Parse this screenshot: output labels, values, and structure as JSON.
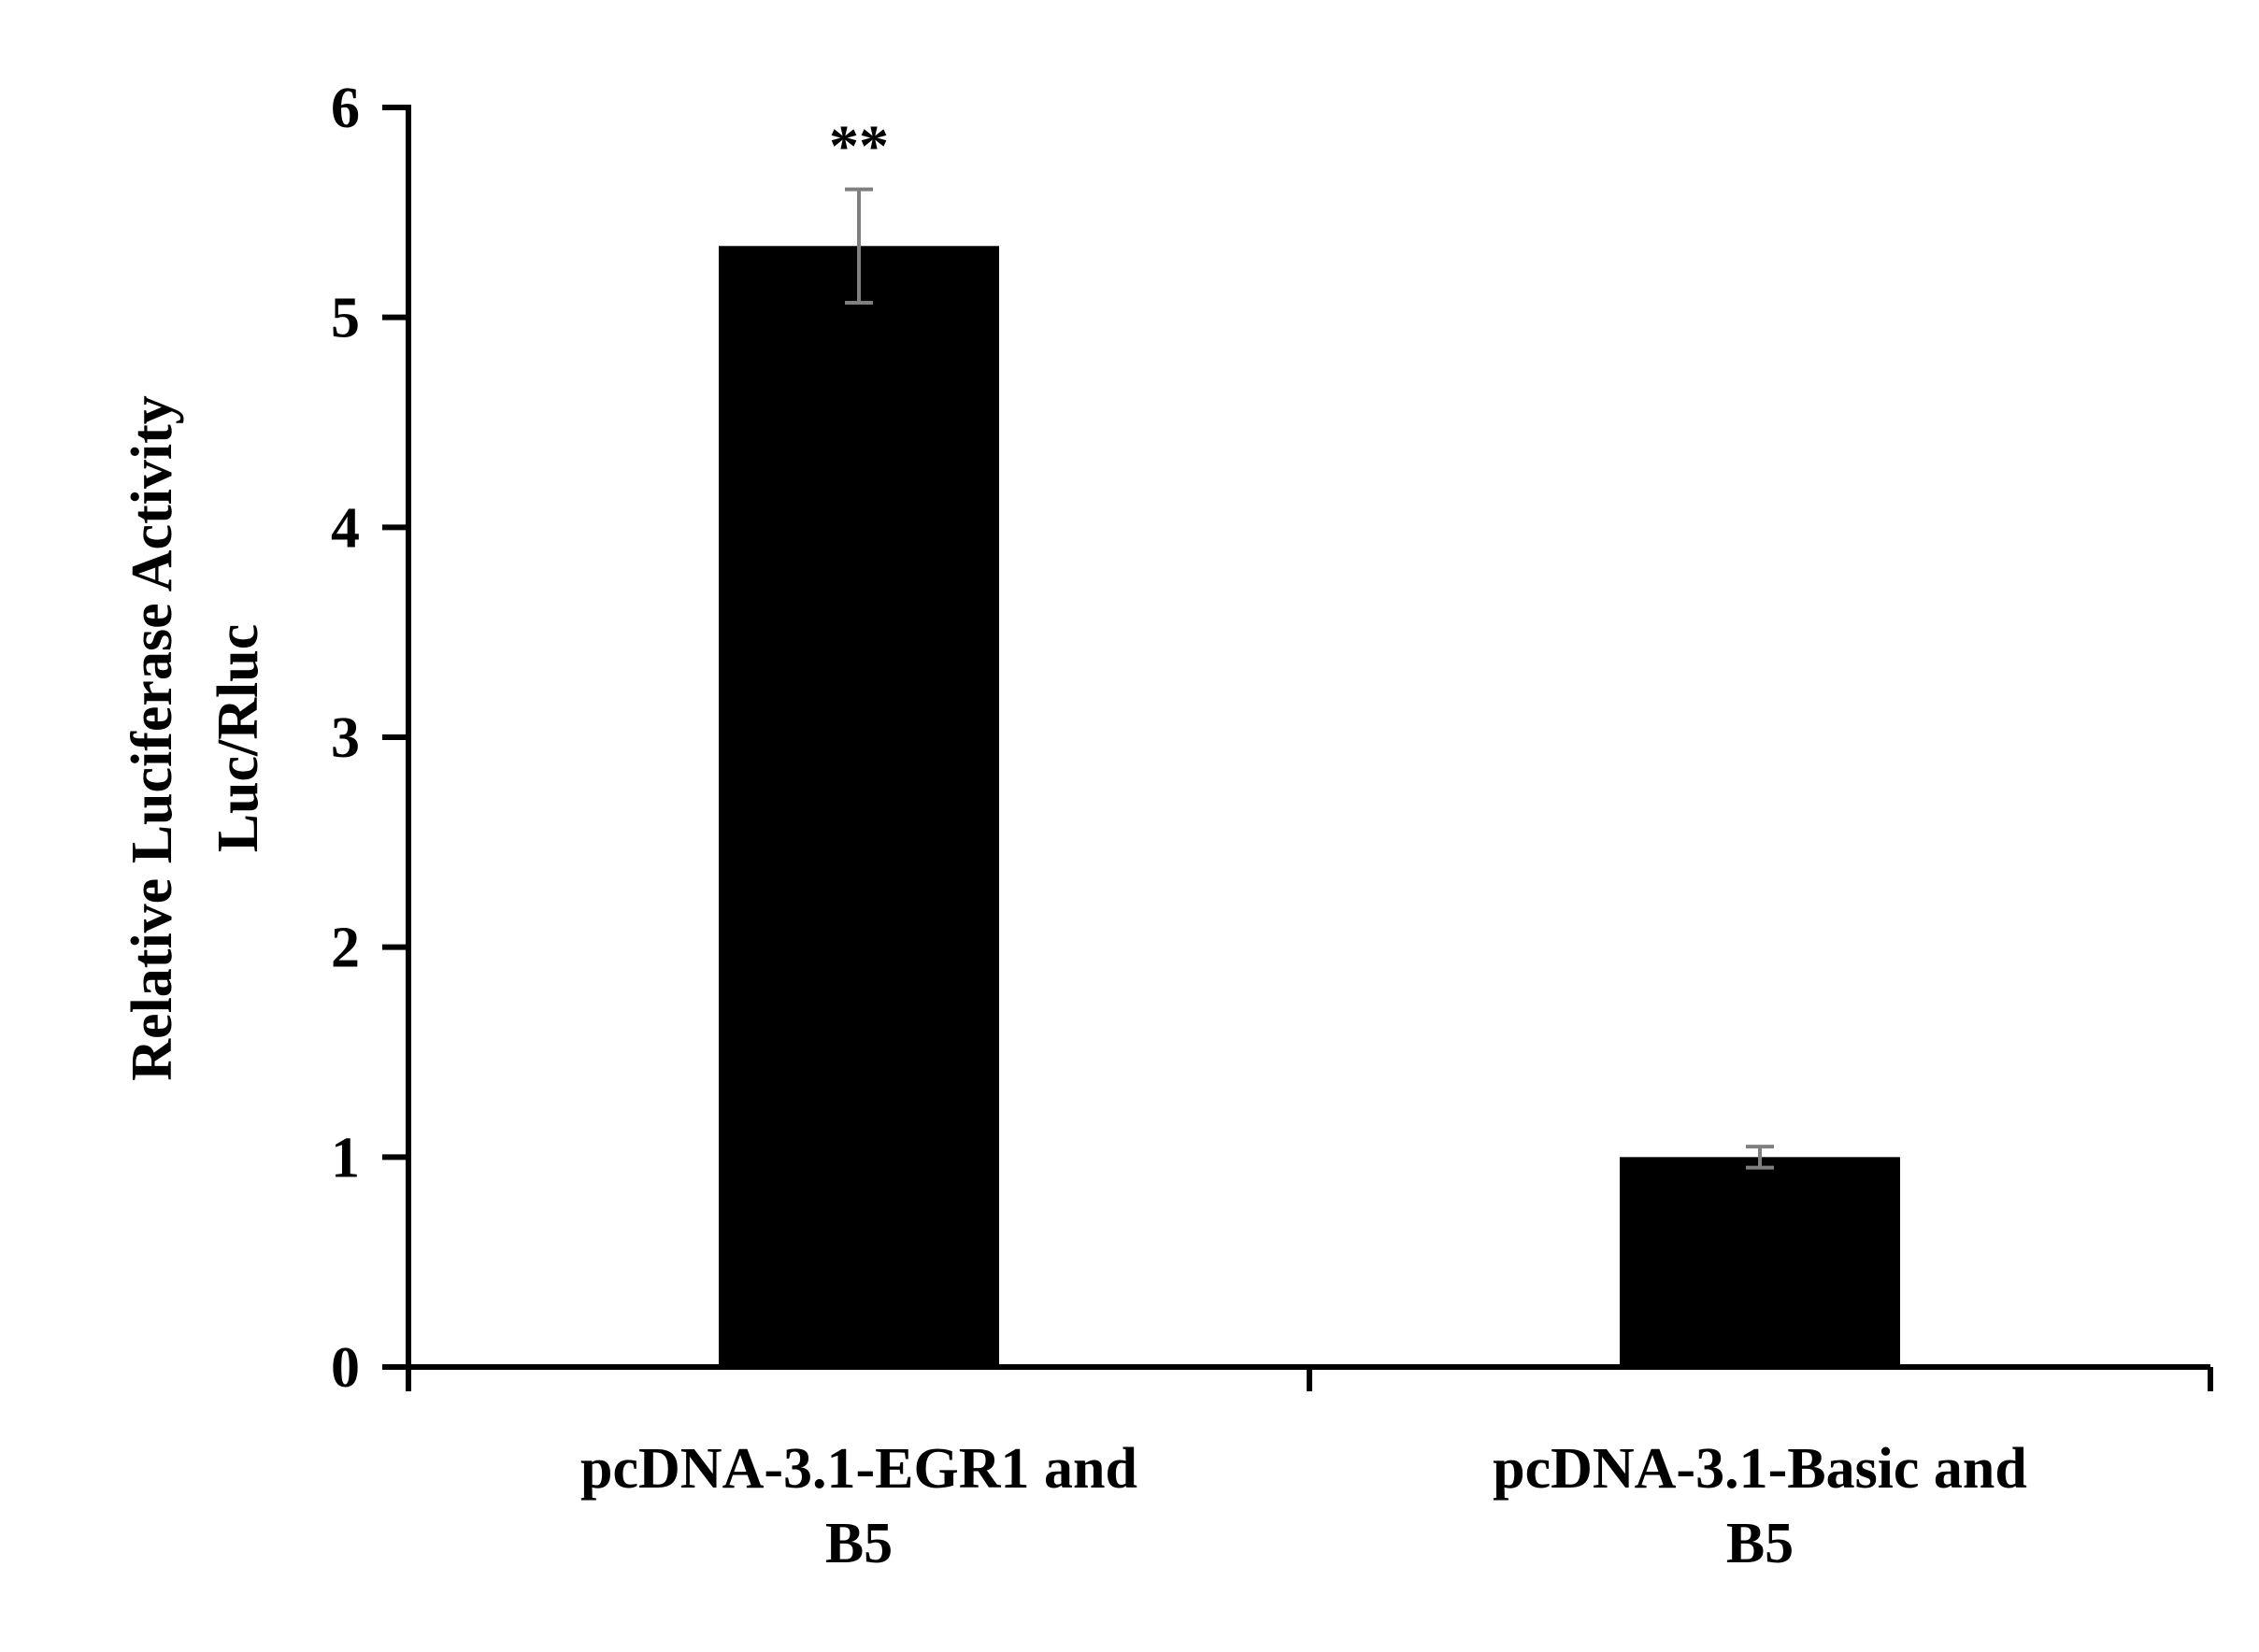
{
  "chart_data": {
    "type": "bar",
    "categories": [
      [
        "pcDNA-3.1-EGR1 and",
        "B5"
      ],
      [
        "pcDNA-3.1-Basic and",
        "B5"
      ]
    ],
    "series": [
      {
        "values": [
          5.34,
          1.0
        ],
        "errors": [
          0.27,
          0.05
        ],
        "annotations": [
          "**",
          ""
        ]
      }
    ],
    "ylabel_lines": [
      "Relative Luciferase Activity",
      "Luc/Rluc"
    ],
    "y_ticks": [
      "0",
      "1",
      "2",
      "3",
      "4",
      "5",
      "6"
    ],
    "ylim": [
      0,
      6
    ],
    "grid": false,
    "legend": "none",
    "colors": {
      "bar": "#000000",
      "error_bar": "#7f7f7f",
      "axis": "#000000",
      "text": "#000000"
    }
  }
}
